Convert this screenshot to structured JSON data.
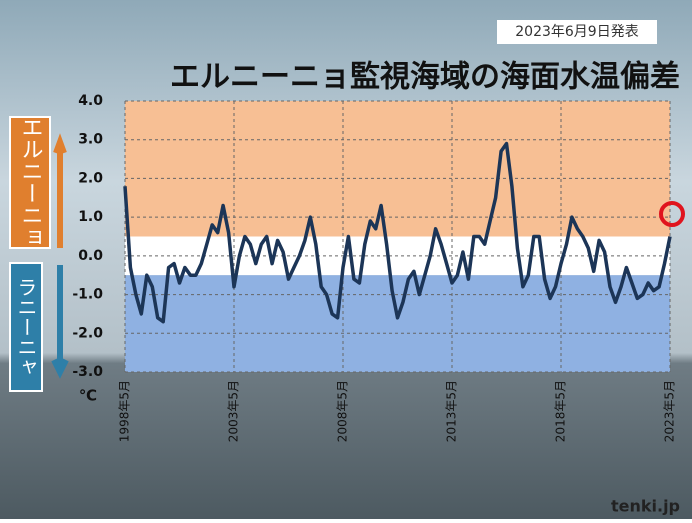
{
  "date_note": "2023年6月9日発表",
  "logo": "tenki.jp",
  "chart_data": {
    "type": "line",
    "title": "エルニーニョ監視海域の海面水温偏差",
    "y_unit": "℃",
    "upper_label": "エルニーニョ",
    "lower_label": "ラニーニャ",
    "categories": [
      "1998年5月",
      null,
      null,
      null,
      null,
      null,
      null,
      null,
      null,
      null,
      null,
      null,
      null,
      null,
      null,
      null,
      null,
      null,
      null,
      null,
      "2003年5月",
      null,
      null,
      null,
      null,
      null,
      null,
      null,
      null,
      null,
      null,
      null,
      null,
      null,
      null,
      null,
      null,
      null,
      null,
      null,
      "2008年5月",
      null,
      null,
      null,
      null,
      null,
      null,
      null,
      null,
      null,
      null,
      null,
      null,
      null,
      null,
      null,
      null,
      null,
      null,
      null,
      "2013年5月",
      null,
      null,
      null,
      null,
      null,
      null,
      null,
      null,
      null,
      null,
      null,
      null,
      null,
      null,
      null,
      null,
      null,
      null,
      null,
      "2018年5月",
      null,
      null,
      null,
      null,
      null,
      null,
      null,
      null,
      null,
      null,
      null,
      null,
      null,
      null,
      null,
      null,
      null,
      null,
      null,
      "2023年5月"
    ],
    "series": [
      {
        "color": "#1c3557",
        "values": [
          1.8,
          -0.3,
          -1.0,
          -1.5,
          -0.5,
          -0.8,
          -1.6,
          -1.7,
          -0.3,
          -0.2,
          -0.7,
          -0.3,
          -0.5,
          -0.5,
          -0.2,
          0.3,
          0.8,
          0.6,
          1.3,
          0.6,
          -0.8,
          0.0,
          0.5,
          0.3,
          -0.2,
          0.3,
          0.5,
          -0.2,
          0.4,
          0.1,
          -0.6,
          -0.3,
          0.0,
          0.4,
          1.0,
          0.3,
          -0.8,
          -1.0,
          -1.5,
          -1.6,
          -0.3,
          0.5,
          -0.6,
          -0.7,
          0.3,
          0.9,
          0.7,
          1.3,
          0.3,
          -0.9,
          -1.6,
          -1.2,
          -0.6,
          -0.4,
          -1.0,
          -0.5,
          0.0,
          0.7,
          0.3,
          -0.2,
          -0.7,
          -0.5,
          0.1,
          -0.6,
          0.5,
          0.5,
          0.3,
          0.9,
          1.5,
          2.7,
          2.9,
          1.8,
          0.2,
          -0.8,
          -0.5,
          0.5,
          0.5,
          -0.6,
          -1.1,
          -0.8,
          -0.2,
          0.3,
          1.0,
          0.7,
          0.5,
          0.2,
          -0.4,
          0.4,
          0.1,
          -0.8,
          -1.2,
          -0.8,
          -0.3,
          -0.7,
          -1.1,
          -1.0,
          -0.7,
          -0.9,
          -0.8,
          -0.2,
          0.5
        ]
      }
    ],
    "ylim": [
      -3,
      4
    ],
    "yticks": [
      {
        "value": 4,
        "label": "4.0"
      },
      {
        "value": 3,
        "label": "3.0"
      },
      {
        "value": 2,
        "label": "2.0"
      },
      {
        "value": 1,
        "label": "1.0"
      },
      {
        "value": 0,
        "label": "0.0"
      },
      {
        "value": -1,
        "label": "-1.0"
      },
      {
        "value": -2,
        "label": "-2.0"
      },
      {
        "value": -3,
        "label": "-3.0"
      }
    ],
    "bands": [
      {
        "range": [
          0.5,
          4
        ],
        "color": "#f7bf94"
      },
      {
        "range": [
          -0.5,
          0.5
        ],
        "color": "#ffffff"
      },
      {
        "range": [
          -3,
          -0.5
        ],
        "color": "#8fb1e2"
      }
    ],
    "grid": true
  }
}
